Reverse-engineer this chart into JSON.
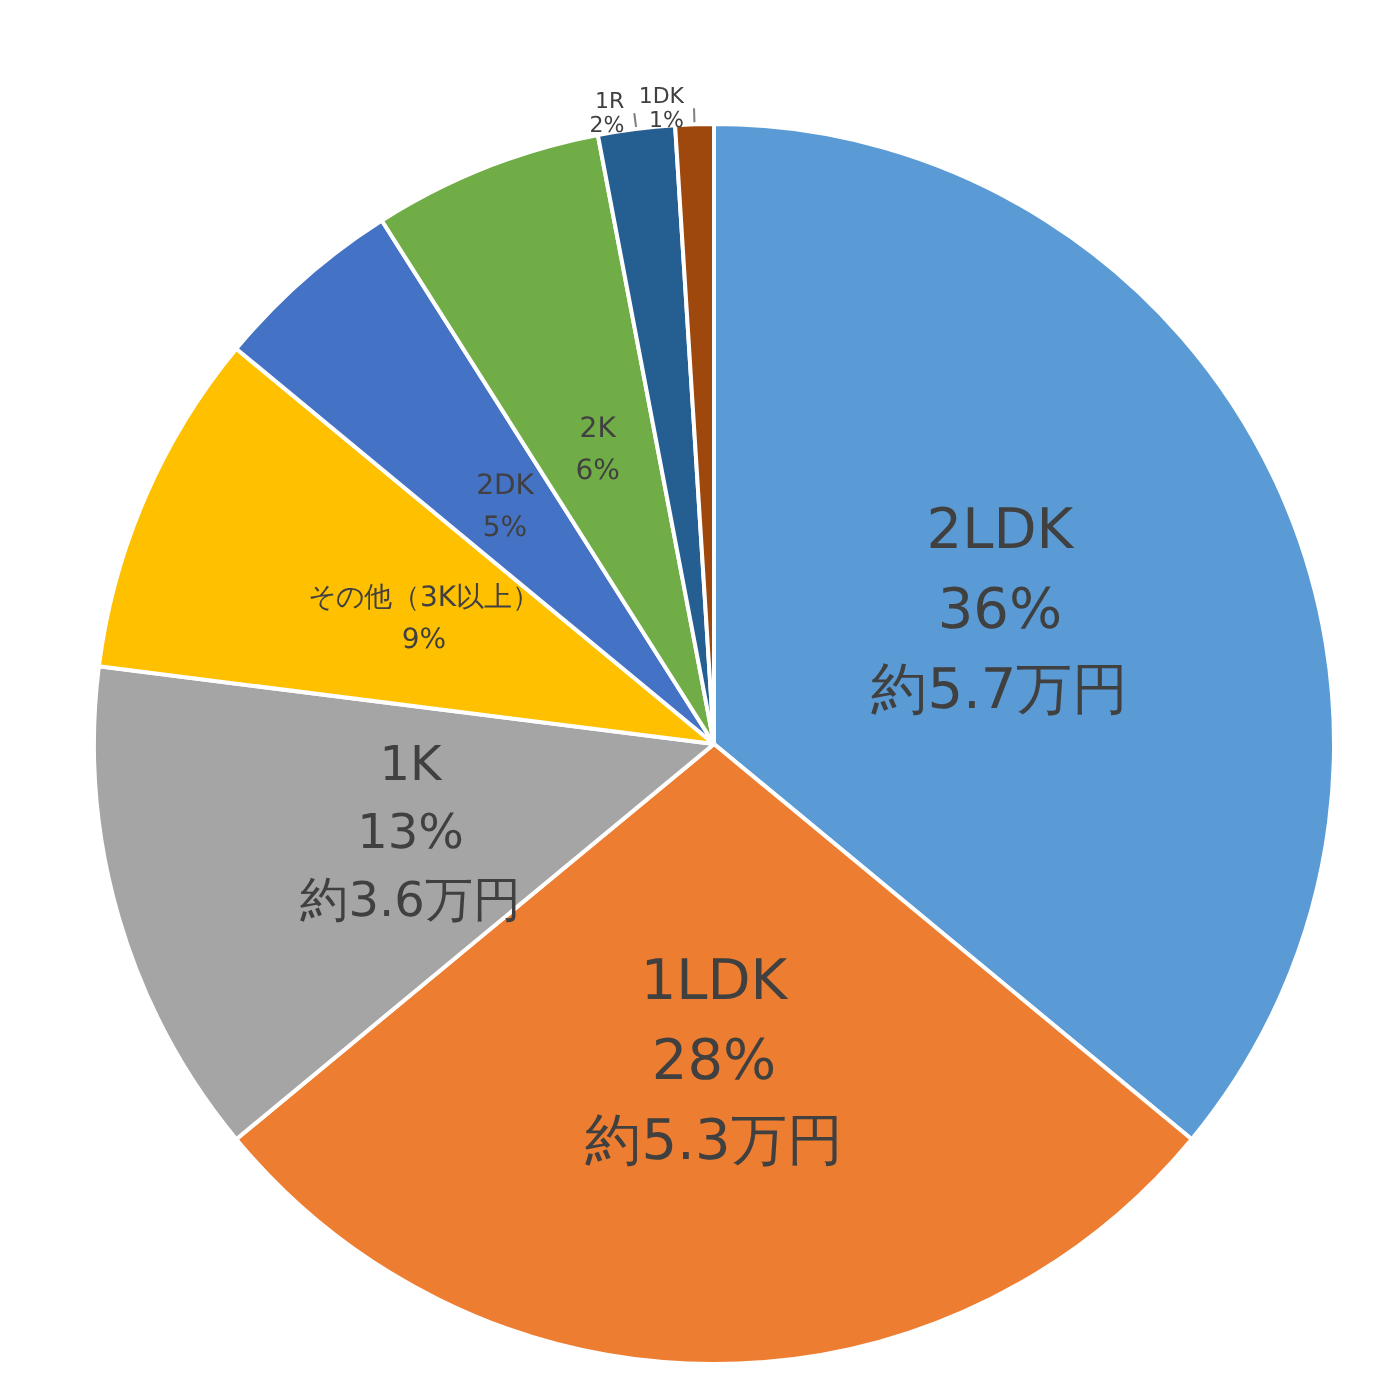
{
  "chart_data": {
    "type": "pie",
    "categories": [
      "2LDK",
      "1LDK",
      "1K",
      "その他（3K以上）",
      "2DK",
      "2K",
      "1R",
      "1DK"
    ],
    "values": [
      36,
      28,
      13,
      9,
      5,
      6,
      2,
      1
    ],
    "colors": [
      "#5b9bd5",
      "#ed7d31",
      "#a5a5a5",
      "#ffc000",
      "#4472c4",
      "#70ad47",
      "#255e91",
      "#9e480e"
    ],
    "value_labels": [
      "36%\n約5.7万円",
      "28%\n約5.3万円",
      "13%\n約3.6万円",
      "9%",
      "5%",
      "6%",
      "2%",
      "1%"
    ],
    "legend": false
  }
}
